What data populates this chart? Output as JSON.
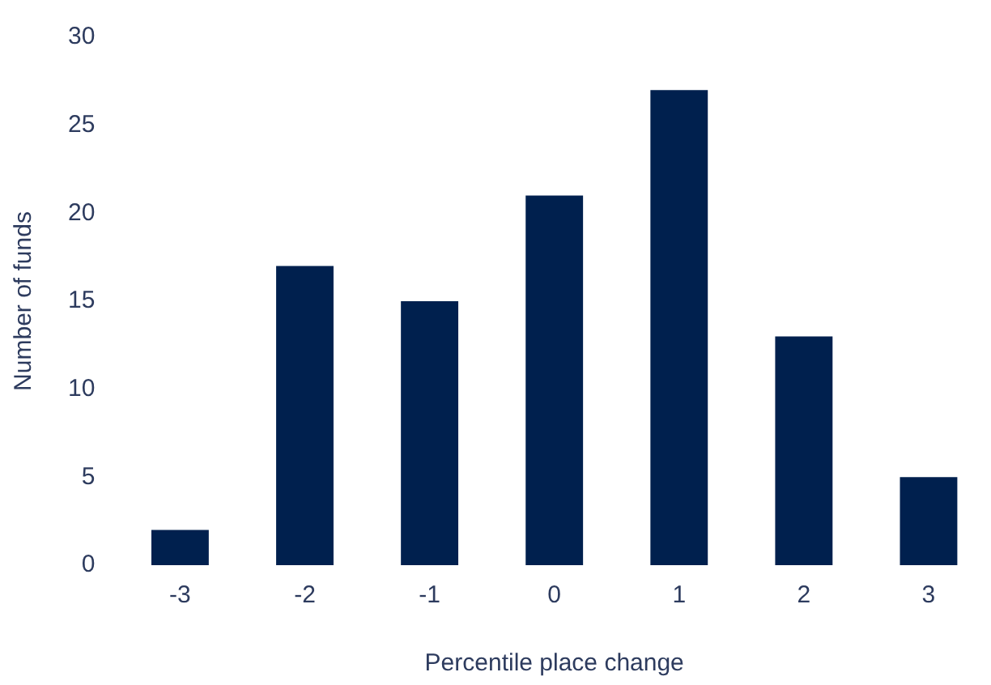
{
  "chart_data": {
    "type": "bar",
    "xlabel": "Percentile place change",
    "ylabel": "Number of funds",
    "categories": [
      "-3",
      "-2",
      "-1",
      "0",
      "1",
      "2",
      "3"
    ],
    "values": [
      2,
      17,
      15,
      21,
      27,
      13,
      5
    ],
    "color": "#00204e",
    "ylim": [
      0,
      30
    ],
    "yticks": [
      0,
      5,
      10,
      15,
      20,
      25,
      30
    ],
    "grid": false,
    "legend": false
  }
}
